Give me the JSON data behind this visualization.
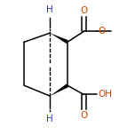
{
  "bg_color": "#ffffff",
  "bond_color": "#000000",
  "atom_color_O": "#cc4400",
  "atom_color_H": "#3333cc",
  "figsize": [
    1.52,
    1.52
  ],
  "dpi": 100,
  "xlim": [
    0.0,
    1.0
  ],
  "ylim": [
    0.05,
    0.95
  ]
}
